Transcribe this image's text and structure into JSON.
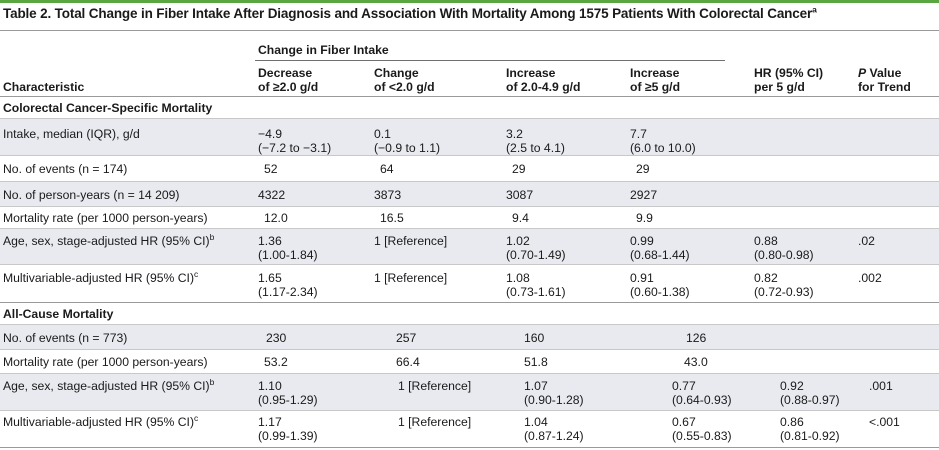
{
  "title": "Table 2. Total Change in Fiber Intake After Diagnosis and Association With Mortality Among 1575 Patients With Colorectal Cancer",
  "title_sup": "a",
  "header": {
    "group": "Change in Fiber Intake",
    "characteristic": "Characteristic",
    "col1": [
      "Decrease",
      "of ≥2.0 g/d"
    ],
    "col2": [
      "Change",
      "of <2.0 g/d"
    ],
    "col3": [
      "Increase",
      "of 2.0-4.9 g/d"
    ],
    "col4": [
      "Increase",
      "of ≥5 g/d"
    ],
    "col5": [
      "HR (95% CI)",
      "per 5 g/d"
    ],
    "col6a": "P",
    "col6b": " Value",
    "col6c": "for Trend"
  },
  "sections": {
    "crc": "Colorectal Cancer-Specific Mortality",
    "all": "All-Cause Mortality"
  },
  "rows": {
    "r1": {
      "label": "Intake, median (IQR), g/d",
      "c1a": "−4.9",
      "c1b": "(−7.2 to −3.1)",
      "c2a": "0.1",
      "c2b": "(−0.9 to 1.1)",
      "c3a": "3.2",
      "c3b": "(2.5 to 4.1)",
      "c4a": "7.7",
      "c4b": "(6.0 to 10.0)"
    },
    "r2": {
      "label": "No. of events (n = 174)",
      "c1": "52",
      "c2": "64",
      "c3": "29",
      "c4": "29"
    },
    "r3": {
      "label": "No. of person-years (n = 14 209)",
      "c1": "4322",
      "c2": "3873",
      "c3": "3087",
      "c4": "2927"
    },
    "r4": {
      "label": "Mortality rate (per 1000 person-years)",
      "c1": "12.0",
      "c2": "16.5",
      "c3": "9.4",
      "c4": "9.9"
    },
    "r5": {
      "label": "Age, sex, stage-adjusted HR (95% CI)",
      "sup": "b",
      "c1a": "1.36",
      "c1b": "(1.00-1.84)",
      "c2": "1 [Reference]",
      "c3a": "1.02",
      "c3b": "(0.70-1.49)",
      "c4a": "0.99",
      "c4b": "(0.68-1.44)",
      "c5a": "0.88",
      "c5b": "(0.80-0.98)",
      "c6": ".02"
    },
    "r6": {
      "label": "Multivariable-adjusted HR (95% CI)",
      "sup": "c",
      "c1a": "1.65",
      "c1b": "(1.17-2.34)",
      "c2": "1 [Reference]",
      "c3a": "1.08",
      "c3b": "(0.73-1.61)",
      "c4a": "0.91",
      "c4b": "(0.60-1.38)",
      "c5a": "0.82",
      "c5b": "(0.72-0.93)",
      "c6": ".002"
    },
    "r7": {
      "label": "No. of events (n = 773)",
      "c1": "230",
      "c2": "257",
      "c3": "160",
      "c4": "126"
    },
    "r8": {
      "label": "Mortality rate (per 1000 person-years)",
      "c1": "53.2",
      "c2": "66.4",
      "c3": "51.8",
      "c4": "43.0"
    },
    "r9": {
      "label": "Age, sex, stage-adjusted HR (95% CI)",
      "sup": "b",
      "c1a": "1.10",
      "c1b": "(0.95-1.29)",
      "c2": "1 [Reference]",
      "c3a": "1.07",
      "c3b": "(0.90-1.28)",
      "c4a": "0.77",
      "c4b": "(0.64-0.93)",
      "c5a": "0.92",
      "c5b": "(0.88-0.97)",
      "c6": ".001"
    },
    "r10": {
      "label": "Multivariable-adjusted HR (95% CI)",
      "sup": "c",
      "c1a": "1.17",
      "c1b": "(0.99-1.39)",
      "c2": "1 [Reference]",
      "c3a": "1.04",
      "c3b": "(0.87-1.24)",
      "c4a": "0.67",
      "c4b": "(0.55-0.83)",
      "c5a": "0.86",
      "c5b": "(0.81-0.92)",
      "c6": "<.001"
    }
  }
}
